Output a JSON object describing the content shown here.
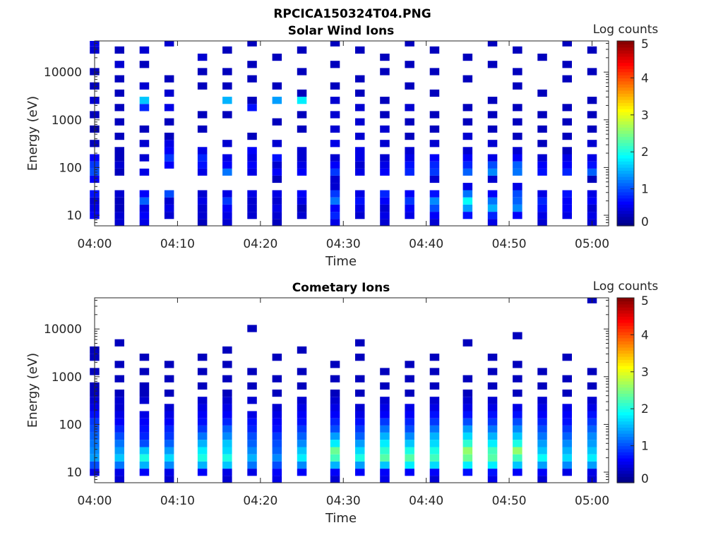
{
  "figure_title": "RPCICA150324T04.PNG",
  "chart_data": [
    {
      "type": "heatmap",
      "title": "Solar Wind Ions",
      "xlabel": "Time",
      "ylabel": "Energy (eV)",
      "yscale": "log",
      "ylim": [
        6,
        45000
      ],
      "xlim": [
        "04:00",
        "05:02"
      ],
      "x_ticks": [
        "04:00",
        "04:10",
        "04:20",
        "04:30",
        "04:40",
        "04:50",
        "05:00"
      ],
      "y_ticks": [
        "10",
        "100",
        "1000",
        "10000"
      ],
      "colorbar": {
        "label": "Log counts",
        "min": 0,
        "max": 5,
        "ticks": [
          "0",
          "1",
          "2",
          "3",
          "4",
          "5"
        ],
        "colormap": "jet"
      },
      "time_start": "04:00",
      "time_step_min": 1.6,
      "energy_channels_eV": [
        7,
        10,
        14,
        20,
        28,
        40,
        57,
        80,
        113,
        160,
        226,
        320,
        452,
        640,
        905,
        1280,
        1810,
        2560,
        3620,
        5120,
        7240,
        10240,
        14500,
        20500,
        29000,
        41000
      ],
      "sweeps": [
        {
          "time": "04:00",
          "values": {
            "10": 0.6,
            "14": 0.5,
            "20": 0.4,
            "28": 0.7,
            "57": 0.6,
            "80": 1.0,
            "113": 0.9,
            "160": 0.6,
            "320": 0.3,
            "640": 0.2,
            "1280": 0.3,
            "2560": 0.4,
            "5120": 0.3,
            "10240": 0.3,
            "29000": 0.4,
            "41000": 0.5
          }
        },
        {
          "time": "04:03",
          "values": {
            "7": 0.4,
            "10": 0.4,
            "14": 0.3,
            "20": 0.3,
            "28": 0.4,
            "80": 0.3,
            "113": 0.4,
            "160": 0.3,
            "226": 0.3,
            "452": 0.3,
            "905": 0.3,
            "1810": 0.3,
            "3620": 0.3,
            "7240": 0.3,
            "14500": 0.4,
            "29000": 0.3
          }
        },
        {
          "time": "04:06",
          "values": {
            "7": 0.5,
            "10": 0.6,
            "14": 0.5,
            "20": 1.1,
            "28": 0.6,
            "80": 0.5,
            "160": 0.4,
            "320": 0.4,
            "640": 0.3,
            "1810": 0.8,
            "2560": 1.6,
            "5120": 0.4,
            "14500": 0.3,
            "29000": 0.4
          }
        },
        {
          "time": "04:09",
          "values": {
            "10": 0.4,
            "14": 0.5,
            "20": 0.4,
            "28": 1.0,
            "113": 0.6,
            "160": 0.9,
            "226": 0.6,
            "320": 0.5,
            "452": 0.3,
            "905": 0.3,
            "1810": 0.5,
            "3620": 0.4,
            "7240": 0.3,
            "41000": 0.4
          }
        },
        {
          "time": "04:13",
          "values": {
            "7": 0.3,
            "10": 0.4,
            "14": 0.4,
            "20": 0.5,
            "28": 0.4,
            "80": 0.5,
            "113": 0.7,
            "160": 0.8,
            "226": 0.5,
            "640": 0.3,
            "1280": 0.3,
            "5120": 0.3,
            "10240": 0.3,
            "20500": 0.4
          }
        },
        {
          "time": "04:16",
          "values": {
            "7": 0.4,
            "10": 0.5,
            "14": 0.6,
            "20": 0.9,
            "28": 0.5,
            "80": 1.2,
            "113": 0.6,
            "160": 0.5,
            "320": 0.4,
            "1280": 0.3,
            "2560": 1.5,
            "5120": 0.3,
            "10240": 0.3,
            "29000": 0.3
          }
        },
        {
          "time": "04:19",
          "values": {
            "10": 0.4,
            "14": 0.4,
            "20": 0.4,
            "28": 0.5,
            "80": 0.5,
            "113": 0.6,
            "160": 0.5,
            "226": 0.6,
            "452": 0.3,
            "1810": 0.7,
            "2560": 0.3,
            "7240": 0.3,
            "14500": 0.3,
            "41000": 0.3
          }
        },
        {
          "time": "04:22",
          "values": {
            "7": 0.3,
            "10": 0.4,
            "14": 0.5,
            "20": 0.4,
            "28": 0.5,
            "57": 0.3,
            "80": 0.6,
            "113": 0.4,
            "160": 0.7,
            "320": 0.4,
            "905": 0.3,
            "2560": 1.4,
            "5120": 0.3,
            "20500": 0.3
          }
        },
        {
          "time": "04:25",
          "values": {
            "10": 0.4,
            "14": 0.3,
            "20": 0.5,
            "28": 0.6,
            "80": 0.6,
            "113": 0.5,
            "160": 0.4,
            "226": 0.4,
            "640": 0.3,
            "1280": 0.3,
            "2560": 1.8,
            "3620": 0.3,
            "10240": 0.3,
            "29000": 0.3
          }
        },
        {
          "time": "04:29",
          "values": {
            "7": 0.5,
            "10": 0.8,
            "14": 0.6,
            "20": 1.2,
            "28": 0.9,
            "40": 0.4,
            "57": 0.4,
            "80": 0.9,
            "113": 0.6,
            "160": 0.4,
            "320": 0.5,
            "640": 0.4,
            "1280": 0.4,
            "2560": 0.4,
            "5120": 0.3,
            "14500": 0.3,
            "41000": 0.3
          }
        },
        {
          "time": "04:32",
          "values": {
            "10": 0.4,
            "14": 0.5,
            "20": 0.7,
            "28": 0.5,
            "80": 0.5,
            "113": 0.4,
            "160": 0.5,
            "226": 0.5,
            "452": 0.4,
            "905": 0.4,
            "1810": 0.4,
            "3620": 0.3,
            "7240": 0.3,
            "29000": 0.3
          }
        },
        {
          "time": "04:35",
          "values": {
            "7": 0.4,
            "10": 0.5,
            "14": 0.4,
            "20": 0.6,
            "28": 0.8,
            "80": 0.6,
            "113": 0.5,
            "160": 0.4,
            "320": 0.4,
            "640": 0.4,
            "1280": 0.3,
            "2560": 0.3,
            "10240": 0.3,
            "20500": 0.3
          }
        },
        {
          "time": "04:38",
          "values": {
            "10": 0.5,
            "14": 0.6,
            "20": 0.9,
            "28": 0.6,
            "80": 0.8,
            "113": 0.7,
            "160": 0.5,
            "226": 0.4,
            "452": 0.3,
            "905": 0.3,
            "1810": 0.4,
            "5120": 0.3,
            "14500": 0.3,
            "41000": 0.3
          }
        },
        {
          "time": "04:41",
          "values": {
            "7": 0.4,
            "10": 0.6,
            "14": 1.0,
            "20": 1.3,
            "28": 0.7,
            "57": 0.4,
            "80": 0.9,
            "113": 0.8,
            "160": 0.6,
            "320": 0.4,
            "640": 0.3,
            "1280": 0.3,
            "3620": 0.3,
            "10240": 0.3,
            "29000": 0.3
          }
        },
        {
          "time": "04:45",
          "values": {
            "10": 0.7,
            "14": 1.4,
            "20": 1.9,
            "28": 1.2,
            "40": 0.5,
            "80": 1.1,
            "113": 0.8,
            "160": 0.6,
            "226": 0.4,
            "452": 0.4,
            "905": 0.3,
            "1810": 0.3,
            "7240": 0.3,
            "20500": 0.3
          }
        },
        {
          "time": "04:48",
          "values": {
            "7": 0.5,
            "10": 0.8,
            "14": 1.5,
            "20": 1.2,
            "28": 0.6,
            "57": 0.4,
            "80": 1.3,
            "113": 1.0,
            "160": 0.5,
            "320": 0.4,
            "640": 0.3,
            "1280": 0.3,
            "2560": 0.3,
            "14500": 0.3,
            "41000": 0.3
          }
        },
        {
          "time": "04:51",
          "values": {
            "10": 0.6,
            "14": 1.3,
            "20": 1.1,
            "28": 1.0,
            "40": 0.5,
            "80": 1.2,
            "113": 1.1,
            "160": 0.6,
            "226": 0.4,
            "452": 0.3,
            "905": 0.3,
            "1810": 0.3,
            "5120": 0.3,
            "10240": 0.3,
            "29000": 0.3
          }
        },
        {
          "time": "04:54",
          "values": {
            "7": 0.4,
            "10": 0.5,
            "14": 0.7,
            "20": 0.8,
            "28": 0.5,
            "80": 0.7,
            "113": 0.6,
            "160": 0.4,
            "320": 0.3,
            "640": 0.3,
            "1280": 0.3,
            "3620": 0.3,
            "20500": 0.3
          }
        },
        {
          "time": "04:57",
          "values": {
            "10": 0.5,
            "14": 0.6,
            "20": 0.6,
            "28": 0.7,
            "80": 0.8,
            "113": 0.6,
            "160": 0.5,
            "226": 0.3,
            "452": 0.3,
            "905": 0.3,
            "1810": 0.3,
            "7240": 0.3,
            "14500": 0.3,
            "41000": 0.3
          }
        },
        {
          "time": "05:00",
          "values": {
            "7": 0.4,
            "10": 0.5,
            "14": 0.4,
            "20": 0.6,
            "28": 0.5,
            "57": 0.3,
            "80": 1.1,
            "113": 0.7,
            "160": 0.5,
            "320": 0.4,
            "640": 0.3,
            "1280": 0.3,
            "2560": 0.3,
            "10240": 0.3,
            "29000": 0.3
          }
        }
      ]
    },
    {
      "type": "heatmap",
      "title": "Cometary Ions",
      "xlabel": "Time",
      "ylabel": "Energy (eV)",
      "yscale": "log",
      "ylim": [
        6,
        45000
      ],
      "xlim": [
        "04:00",
        "05:02"
      ],
      "x_ticks": [
        "04:00",
        "04:10",
        "04:20",
        "04:30",
        "04:40",
        "04:50",
        "05:00"
      ],
      "y_ticks": [
        "10",
        "100",
        "1000",
        "10000"
      ],
      "colorbar": {
        "label": "Log counts",
        "min": 0,
        "max": 5,
        "ticks": [
          "0",
          "1",
          "2",
          "3",
          "4",
          "5"
        ],
        "colormap": "jet"
      },
      "time_start": "04:00",
      "time_step_min": 1.6,
      "energy_channels_eV": [
        7,
        10,
        14,
        20,
        28,
        40,
        57,
        80,
        113,
        160,
        226,
        320,
        452,
        640,
        905,
        1280,
        1810,
        2560,
        3620,
        5120,
        7240,
        10240,
        14500,
        20500,
        29000,
        41000
      ],
      "sweeps": [
        {
          "time": "04:00",
          "values": {
            "10": 0.5,
            "14": 1.0,
            "20": 1.4,
            "28": 1.3,
            "40": 1.2,
            "57": 1.1,
            "80": 1.0,
            "113": 0.9,
            "160": 0.7,
            "226": 0.5,
            "320": 0.4,
            "452": 0.3,
            "640": 0.3,
            "1280": 0.3,
            "2560": 0.3,
            "3620": 0.3
          }
        },
        {
          "time": "04:03",
          "values": {
            "7": 0.4,
            "10": 0.5,
            "14": 1.2,
            "20": 1.6,
            "28": 1.4,
            "40": 1.2,
            "57": 1.0,
            "80": 0.8,
            "113": 0.6,
            "160": 0.5,
            "226": 0.4,
            "320": 0.4,
            "452": 0.3,
            "905": 0.3,
            "1810": 0.3,
            "5120": 0.3
          }
        },
        {
          "time": "04:06",
          "values": {
            "10": 0.6,
            "14": 1.5,
            "20": 2.0,
            "28": 1.6,
            "40": 1.0,
            "57": 0.8,
            "80": 0.7,
            "113": 0.6,
            "160": 0.5,
            "320": 0.4,
            "452": 0.3,
            "640": 0.3,
            "1280": 0.3,
            "2560": 0.3
          }
        },
        {
          "time": "04:09",
          "values": {
            "7": 0.4,
            "10": 0.5,
            "14": 1.3,
            "20": 1.7,
            "28": 1.4,
            "40": 1.1,
            "57": 0.9,
            "80": 0.8,
            "113": 0.6,
            "160": 0.5,
            "226": 0.4,
            "452": 0.3,
            "905": 0.3,
            "1810": 0.3
          }
        },
        {
          "time": "04:13",
          "values": {
            "10": 0.6,
            "14": 1.5,
            "20": 2.0,
            "28": 1.8,
            "40": 1.5,
            "57": 1.2,
            "80": 0.9,
            "113": 0.7,
            "160": 0.6,
            "226": 0.5,
            "320": 0.4,
            "640": 0.3,
            "1280": 0.3,
            "2560": 0.3
          }
        },
        {
          "time": "04:16",
          "values": {
            "7": 0.4,
            "10": 0.5,
            "14": 1.6,
            "20": 2.0,
            "28": 1.7,
            "40": 1.6,
            "57": 1.3,
            "80": 1.1,
            "113": 0.8,
            "160": 0.6,
            "226": 0.5,
            "320": 0.4,
            "452": 0.3,
            "905": 0.3,
            "1810": 0.3,
            "3620": 0.3
          }
        },
        {
          "time": "04:19",
          "values": {
            "10": 0.5,
            "14": 1.2,
            "20": 1.5,
            "28": 1.3,
            "40": 1.1,
            "57": 1.0,
            "80": 0.8,
            "113": 0.7,
            "160": 0.5,
            "320": 0.4,
            "640": 0.3,
            "1280": 0.3,
            "10240": 0.3
          }
        },
        {
          "time": "04:22",
          "values": {
            "7": 0.5,
            "10": 0.6,
            "14": 1.0,
            "20": 1.3,
            "28": 1.1,
            "40": 1.0,
            "57": 0.9,
            "80": 0.7,
            "113": 0.6,
            "160": 0.5,
            "226": 0.4,
            "452": 0.3,
            "905": 0.3,
            "2560": 0.3
          }
        },
        {
          "time": "04:25",
          "values": {
            "10": 0.6,
            "14": 1.3,
            "20": 1.8,
            "28": 1.6,
            "40": 1.3,
            "57": 1.1,
            "80": 0.9,
            "113": 0.7,
            "160": 0.6,
            "226": 0.5,
            "320": 0.4,
            "640": 0.3,
            "1280": 0.3,
            "3620": 0.3
          }
        },
        {
          "time": "04:29",
          "values": {
            "7": 0.4,
            "10": 0.6,
            "14": 1.5,
            "20": 2.2,
            "28": 2.4,
            "40": 1.8,
            "57": 1.4,
            "80": 1.0,
            "113": 0.8,
            "160": 0.6,
            "226": 0.5,
            "320": 0.4,
            "452": 0.3,
            "905": 0.3,
            "1810": 0.3
          }
        },
        {
          "time": "04:32",
          "values": {
            "10": 0.6,
            "14": 1.4,
            "20": 2.0,
            "28": 1.7,
            "40": 1.4,
            "57": 1.1,
            "80": 0.9,
            "113": 0.7,
            "160": 0.5,
            "226": 0.4,
            "452": 0.3,
            "905": 0.3,
            "2560": 0.3,
            "5120": 0.3
          }
        },
        {
          "time": "04:35",
          "values": {
            "7": 0.5,
            "10": 0.6,
            "14": 1.6,
            "20": 2.3,
            "28": 2.1,
            "40": 1.8,
            "57": 1.5,
            "80": 1.2,
            "113": 0.9,
            "160": 0.6,
            "226": 0.5,
            "320": 0.4,
            "640": 0.3,
            "1280": 0.3
          }
        },
        {
          "time": "04:38",
          "values": {
            "10": 0.6,
            "14": 1.8,
            "20": 2.3,
            "28": 2.0,
            "40": 1.6,
            "57": 1.3,
            "80": 1.0,
            "113": 0.8,
            "160": 0.6,
            "226": 0.5,
            "452": 0.3,
            "905": 0.3,
            "1810": 0.3
          }
        },
        {
          "time": "04:41",
          "values": {
            "7": 0.4,
            "10": 0.6,
            "14": 1.7,
            "20": 2.2,
            "28": 2.0,
            "40": 1.7,
            "57": 1.5,
            "80": 1.2,
            "113": 0.9,
            "160": 0.7,
            "226": 0.5,
            "320": 0.4,
            "640": 0.3,
            "1280": 0.3,
            "2560": 0.3
          }
        },
        {
          "time": "04:45",
          "values": {
            "10": 0.7,
            "14": 1.8,
            "20": 2.4,
            "28": 2.6,
            "40": 2.1,
            "57": 1.7,
            "80": 1.4,
            "113": 1.0,
            "160": 0.7,
            "226": 0.5,
            "320": 0.4,
            "452": 0.3,
            "905": 0.3,
            "5120": 0.3
          }
        },
        {
          "time": "04:48",
          "values": {
            "7": 0.5,
            "10": 0.7,
            "14": 1.8,
            "20": 2.3,
            "28": 2.2,
            "40": 1.8,
            "57": 1.5,
            "80": 1.2,
            "113": 0.9,
            "160": 0.7,
            "226": 0.5,
            "320": 0.4,
            "640": 0.3,
            "1280": 0.3,
            "2560": 0.3
          }
        },
        {
          "time": "04:51",
          "values": {
            "10": 0.6,
            "14": 1.6,
            "20": 2.2,
            "28": 2.6,
            "40": 2.0,
            "57": 1.6,
            "80": 1.3,
            "113": 1.0,
            "160": 0.7,
            "226": 0.5,
            "452": 0.3,
            "905": 0.3,
            "1810": 0.3,
            "7240": 0.3
          }
        },
        {
          "time": "04:54",
          "values": {
            "7": 0.4,
            "10": 0.6,
            "14": 1.4,
            "20": 1.9,
            "28": 1.6,
            "40": 1.4,
            "57": 1.2,
            "80": 1.0,
            "113": 0.8,
            "160": 0.6,
            "226": 0.5,
            "320": 0.4,
            "640": 0.3,
            "1280": 0.3
          }
        },
        {
          "time": "04:57",
          "values": {
            "10": 0.5,
            "14": 1.3,
            "20": 1.7,
            "28": 1.5,
            "40": 1.3,
            "57": 1.1,
            "80": 0.9,
            "113": 0.7,
            "160": 0.6,
            "226": 0.5,
            "452": 0.3,
            "905": 0.3,
            "2560": 0.3
          }
        },
        {
          "time": "05:00",
          "values": {
            "7": 0.4,
            "10": 0.5,
            "14": 1.4,
            "20": 1.8,
            "28": 1.6,
            "40": 1.4,
            "57": 1.3,
            "80": 1.1,
            "113": 0.9,
            "160": 0.7,
            "226": 0.5,
            "320": 0.4,
            "640": 0.3,
            "1280": 0.3,
            "41000": 0.3
          }
        }
      ]
    }
  ]
}
